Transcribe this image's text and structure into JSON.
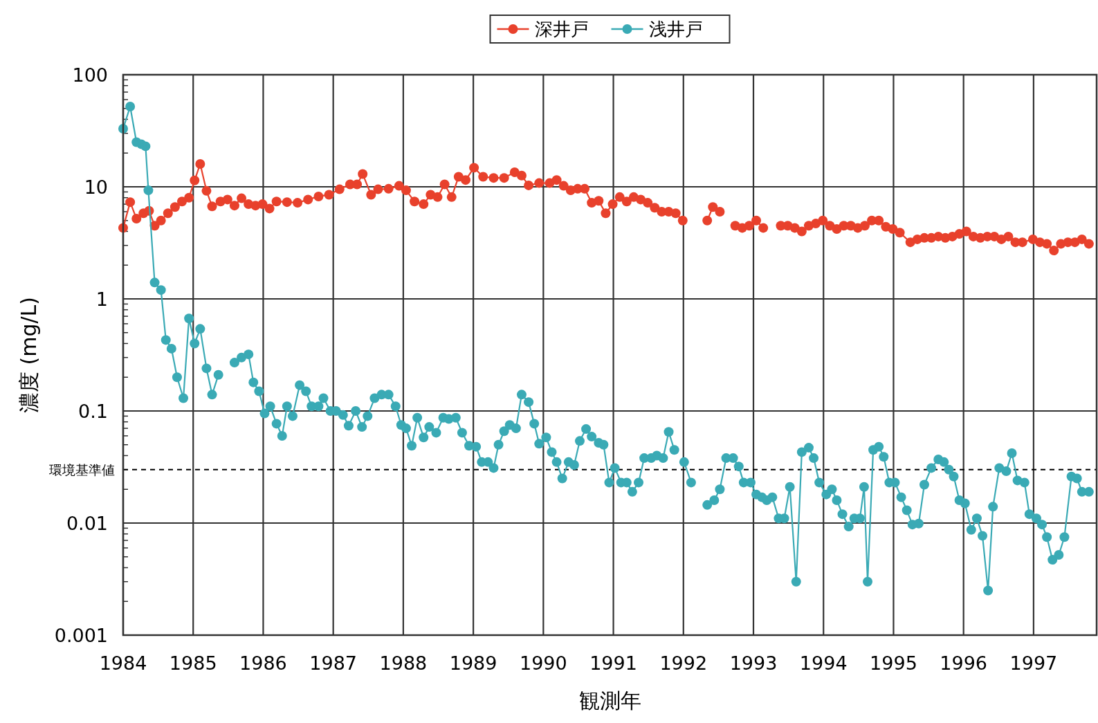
{
  "chart_data": {
    "type": "line",
    "xlabel": "観測年",
    "ylabel": "濃度 (mg/L)",
    "log": "y",
    "grid": true,
    "legend": "top",
    "marker": "circle",
    "line_style": "solid",
    "xlim": [
      1984,
      1997.9
    ],
    "xticks": [
      1984,
      1985,
      1986,
      1987,
      1988,
      1989,
      1990,
      1991,
      1992,
      1993,
      1994,
      1995,
      1996,
      1997
    ],
    "ylim": [
      0.001,
      100
    ],
    "yticks": [
      0.001,
      0.01,
      0.1,
      1,
      10,
      100
    ],
    "ref_lines": [
      {
        "axis": "y",
        "value": 0.03,
        "label": "環境基準値",
        "line_style": "dashed",
        "color": "#000000"
      }
    ],
    "series": [
      {
        "name": "深井戸",
        "color": "#e8412c",
        "x": [
          1984.0,
          1984.1,
          1984.19,
          1984.29,
          1984.37,
          1984.45,
          1984.54,
          1984.64,
          1984.74,
          1984.84,
          1984.94,
          1985.02,
          1985.1,
          1985.19,
          1985.27,
          1985.39,
          1985.49,
          1985.59,
          1985.69,
          1985.79,
          1985.89,
          1985.99,
          1986.09,
          1986.19,
          1986.34,
          1986.49,
          1986.64,
          1986.79,
          1986.94,
          1987.09,
          1987.24,
          1987.34,
          1987.42,
          1987.54,
          1987.64,
          1987.79,
          1987.94,
          1988.04,
          1988.16,
          1988.29,
          1988.39,
          1988.49,
          1988.59,
          1988.69,
          1988.79,
          1988.89,
          1989.01,
          1989.14,
          1989.29,
          1989.44,
          1989.59,
          1989.69,
          1989.79,
          1989.94,
          1990.09,
          1990.19,
          1990.29,
          1990.39,
          1990.49,
          1990.59,
          1990.69,
          1990.79,
          1990.89,
          1990.99,
          1991.09,
          1991.19,
          1991.29,
          1991.39,
          1991.49,
          1991.59,
          1991.69,
          1991.79,
          1991.89,
          1991.99,
          null,
          1992.34,
          1992.42,
          1992.52,
          null,
          1992.74,
          1992.84,
          1992.94,
          1993.04,
          1993.14,
          null,
          1993.39,
          1993.49,
          1993.59,
          1993.69,
          1993.79,
          1993.89,
          1993.99,
          1994.09,
          1994.19,
          1994.29,
          1994.39,
          1994.49,
          1994.59,
          1994.69,
          1994.79,
          1994.89,
          1994.99,
          1995.09,
          1995.24,
          1995.34,
          1995.44,
          1995.54,
          1995.64,
          1995.74,
          1995.84,
          1995.94,
          1996.04,
          1996.14,
          1996.24,
          1996.34,
          1996.44,
          1996.54,
          1996.64,
          1996.74,
          1996.84,
          1996.99,
          1997.09,
          1997.19,
          1997.29,
          1997.39,
          1997.49,
          1997.59,
          1997.69,
          1997.79
        ],
        "values": [
          4.3,
          7.3,
          5.2,
          5.8,
          6.1,
          4.5,
          5.0,
          5.8,
          6.6,
          7.4,
          8.0,
          11.4,
          16,
          9.2,
          6.7,
          7.4,
          7.7,
          6.8,
          7.9,
          7.0,
          6.8,
          7.0,
          6.4,
          7.4,
          7.3,
          7.2,
          7.7,
          8.2,
          8.5,
          9.5,
          10.5,
          10.5,
          13,
          8.5,
          9.5,
          9.6,
          10.2,
          9.3,
          7.4,
          7.0,
          8.5,
          8.1,
          10.5,
          8.1,
          12.3,
          11.5,
          14.8,
          12.3,
          12.0,
          12.0,
          13.5,
          12.6,
          10.3,
          10.8,
          10.8,
          11.5,
          10.2,
          9.3,
          9.6,
          9.6,
          7.2,
          7.5,
          5.8,
          7.0,
          8.1,
          7.4,
          8.1,
          7.7,
          7.2,
          6.5,
          6.0,
          6.0,
          5.8,
          5.0,
          null,
          5.0,
          6.6,
          6.0,
          null,
          4.5,
          4.3,
          4.5,
          5.0,
          4.3,
          null,
          4.5,
          4.5,
          4.3,
          4.0,
          4.5,
          4.7,
          5.0,
          4.5,
          4.2,
          4.5,
          4.5,
          4.3,
          4.5,
          5.0,
          5.0,
          4.4,
          4.2,
          3.9,
          3.2,
          3.4,
          3.5,
          3.5,
          3.6,
          3.5,
          3.6,
          3.8,
          4.0,
          3.6,
          3.5,
          3.6,
          3.6,
          3.4,
          3.6,
          3.2,
          3.2,
          3.4,
          3.2,
          3.1,
          2.7,
          3.1,
          3.2,
          3.2,
          3.4,
          3.1
        ]
      },
      {
        "name": "浅井戸",
        "color": "#3aaab5",
        "x": [
          1984.0,
          1984.1,
          1984.19,
          1984.26,
          1984.32,
          1984.36,
          1984.45,
          1984.54,
          1984.61,
          1984.69,
          1984.77,
          1984.86,
          1984.94,
          1985.02,
          1985.1,
          1985.19,
          1985.27,
          1985.36,
          null,
          1985.59,
          1985.69,
          1985.79,
          1985.86,
          1985.94,
          1986.02,
          1986.1,
          1986.19,
          1986.27,
          1986.34,
          1986.42,
          1986.52,
          1986.61,
          1986.69,
          1986.79,
          1986.86,
          1986.96,
          1987.04,
          1987.14,
          1987.22,
          1987.32,
          1987.41,
          1987.49,
          1987.59,
          1987.69,
          1987.79,
          1987.89,
          1987.97,
          1988.04,
          1988.12,
          1988.2,
          1988.29,
          1988.37,
          1988.47,
          1988.57,
          1988.65,
          1988.75,
          1988.84,
          1988.94,
          1989.04,
          1989.12,
          1989.21,
          1989.29,
          1989.36,
          1989.44,
          1989.52,
          1989.61,
          1989.69,
          1989.79,
          1989.87,
          1989.94,
          1990.04,
          1990.12,
          1990.19,
          1990.27,
          1990.36,
          1990.44,
          1990.52,
          1990.61,
          1990.69,
          1990.79,
          1990.86,
          1990.94,
          1991.02,
          1991.11,
          1991.19,
          1991.27,
          1991.36,
          1991.44,
          1991.54,
          1991.62,
          1991.71,
          1991.79,
          1991.87,
          null,
          1992.01,
          1992.11,
          null,
          1992.34,
          1992.44,
          1992.52,
          1992.61,
          1992.71,
          1992.79,
          1992.86,
          1992.96,
          1993.04,
          1993.12,
          1993.19,
          1993.27,
          1993.36,
          1993.44,
          1993.52,
          1993.61,
          1993.69,
          1993.79,
          1993.86,
          1993.94,
          1994.04,
          1994.12,
          1994.19,
          1994.27,
          1994.36,
          1994.44,
          1994.52,
          1994.58,
          1994.63,
          1994.71,
          1994.79,
          1994.86,
          1994.94,
          1995.02,
          1995.11,
          1995.19,
          1995.27,
          1995.36,
          1995.44,
          1995.54,
          1995.64,
          1995.72,
          1995.79,
          1995.86,
          1995.94,
          1996.02,
          1996.11,
          1996.19,
          1996.27,
          1996.35,
          1996.42,
          1996.51,
          1996.61,
          1996.69,
          1996.77,
          1996.87,
          1996.94,
          1997.04,
          1997.12,
          1997.19,
          1997.27,
          1997.36,
          1997.44,
          1997.54,
          1997.62,
          1997.69,
          1997.79
        ],
        "values": [
          33,
          52,
          25,
          24,
          23,
          9.3,
          1.4,
          1.2,
          0.43,
          0.36,
          0.2,
          0.13,
          0.67,
          0.4,
          0.54,
          0.24,
          0.14,
          0.21,
          null,
          0.27,
          0.3,
          0.32,
          0.18,
          0.15,
          0.095,
          0.11,
          0.077,
          0.06,
          0.11,
          0.09,
          0.17,
          0.15,
          0.11,
          0.11,
          0.13,
          0.1,
          0.1,
          0.092,
          0.074,
          0.1,
          0.072,
          0.09,
          0.13,
          0.14,
          0.14,
          0.11,
          0.075,
          0.07,
          0.049,
          0.087,
          0.058,
          0.072,
          0.064,
          0.087,
          0.085,
          0.087,
          0.064,
          0.049,
          0.048,
          0.035,
          0.035,
          0.031,
          0.05,
          0.066,
          0.075,
          0.07,
          0.14,
          0.12,
          0.077,
          0.051,
          0.058,
          0.043,
          0.035,
          0.025,
          0.035,
          0.033,
          0.054,
          0.069,
          0.059,
          0.052,
          0.05,
          0.023,
          0.031,
          0.023,
          0.023,
          0.019,
          0.023,
          0.038,
          0.038,
          0.04,
          0.038,
          0.065,
          0.045,
          null,
          0.035,
          0.023,
          null,
          0.0145,
          0.016,
          0.02,
          0.038,
          0.038,
          0.032,
          0.023,
          0.023,
          0.018,
          0.017,
          0.016,
          0.017,
          0.011,
          0.011,
          0.021,
          0.003,
          0.043,
          0.047,
          0.038,
          0.023,
          0.018,
          0.02,
          0.016,
          0.012,
          0.0093,
          0.011,
          0.011,
          0.021,
          0.003,
          0.045,
          0.048,
          0.039,
          0.023,
          0.023,
          0.017,
          0.013,
          0.0097,
          0.0099,
          0.022,
          0.031,
          0.037,
          0.035,
          0.03,
          0.026,
          0.016,
          0.015,
          0.0087,
          0.011,
          0.0077,
          0.0025,
          0.014,
          0.031,
          0.029,
          0.042,
          0.024,
          0.023,
          0.012,
          0.011,
          0.0097,
          0.0075,
          0.0047,
          0.0052,
          0.0075,
          0.026,
          0.025,
          0.019,
          0.019
        ]
      }
    ]
  }
}
